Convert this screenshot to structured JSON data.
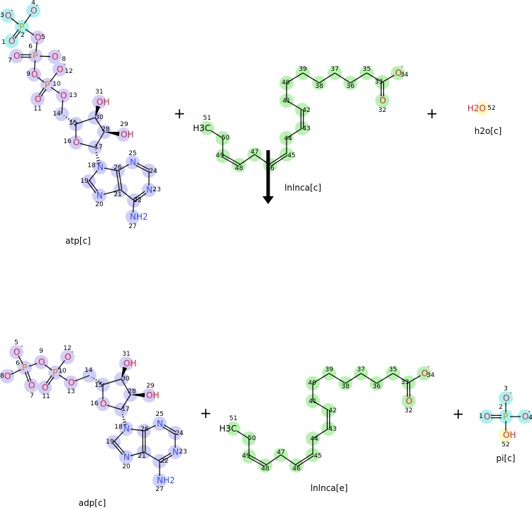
{
  "colors": {
    "lavender": "#cfcff8",
    "cyan": "#a8f2f2",
    "green": "#b8f2b0",
    "yellow": "#fbfbc0",
    "O": "#e0203a",
    "N": "#3050f8",
    "P": "#e07020",
    "Pgold": "#c09a10",
    "bond": "#000000"
  },
  "plus": "+",
  "reaction_arrow": {
    "direction": "down"
  },
  "molecules": {
    "atp": {
      "label": "atp[c]",
      "atoms": [
        {
          "n": "1",
          "el": "O",
          "hl": "cyan"
        },
        {
          "n": "2",
          "el": "P",
          "hl": "cyan",
          "gold": true
        },
        {
          "n": "3",
          "el": "O",
          "chg": "-",
          "hl": "cyan"
        },
        {
          "n": "4",
          "el": "O",
          "chg": "-",
          "hl": "cyan"
        },
        {
          "n": "5",
          "el": "O",
          "hl": "lavender"
        },
        {
          "n": "6",
          "el": "P",
          "hl": "lavender"
        },
        {
          "n": "7",
          "el": "O",
          "hl": "lavender"
        },
        {
          "n": "8",
          "el": "O",
          "chg": "-",
          "hl": "lavender"
        },
        {
          "n": "9",
          "el": "O",
          "hl": "lavender"
        },
        {
          "n": "10",
          "el": "P",
          "hl": "lavender"
        },
        {
          "n": "11",
          "el": "O",
          "hl": "lavender"
        },
        {
          "n": "12",
          "el": "O",
          "chg": "-",
          "hl": "lavender"
        },
        {
          "n": "13",
          "el": "O",
          "hl": "lavender"
        },
        {
          "n": "14",
          "el": "",
          "hl": "lavender"
        },
        {
          "n": "15",
          "el": "",
          "hl": "lavender"
        },
        {
          "n": "16",
          "el": "O",
          "hl": "lavender"
        },
        {
          "n": "17",
          "el": "",
          "hl": "lavender"
        },
        {
          "n": "18",
          "el": "N",
          "hl": "lavender"
        },
        {
          "n": "19",
          "el": "",
          "hl": "lavender"
        },
        {
          "n": "20",
          "el": "N",
          "hl": "lavender"
        },
        {
          "n": "21",
          "el": "",
          "hl": "lavender"
        },
        {
          "n": "22",
          "el": "",
          "hl": "lavender"
        },
        {
          "n": "23",
          "el": "N",
          "hl": "lavender"
        },
        {
          "n": "24",
          "el": "",
          "hl": "lavender"
        },
        {
          "n": "25",
          "el": "N",
          "hl": "lavender"
        },
        {
          "n": "26",
          "el": "",
          "hl": "lavender"
        },
        {
          "n": "27",
          "el": "NH2",
          "hl": "lavender"
        },
        {
          "n": "28",
          "el": "",
          "hl": "lavender"
        },
        {
          "n": "29",
          "el": "OH",
          "hl": "lavender"
        },
        {
          "n": "30",
          "el": "",
          "hl": "lavender"
        },
        {
          "n": "31",
          "el": "OH",
          "hl": "lavender"
        }
      ]
    },
    "lnlnca_c": {
      "label": "lnlnca[c]",
      "atoms": [
        {
          "n": "32",
          "el": "O",
          "hl": "green"
        },
        {
          "n": "33",
          "el": "",
          "hl": "green"
        },
        {
          "n": "34",
          "el": "O",
          "chg": "-",
          "hl": "green"
        },
        {
          "n": "35",
          "el": "",
          "hl": "green"
        },
        {
          "n": "36",
          "el": "",
          "hl": "green"
        },
        {
          "n": "37",
          "el": "",
          "hl": "green"
        },
        {
          "n": "38",
          "el": "",
          "hl": "green"
        },
        {
          "n": "39",
          "el": "",
          "hl": "green"
        },
        {
          "n": "40",
          "el": "",
          "hl": "green"
        },
        {
          "n": "41",
          "el": "",
          "hl": "green"
        },
        {
          "n": "42",
          "el": "",
          "hl": "green"
        },
        {
          "n": "43",
          "el": "",
          "hl": "green"
        },
        {
          "n": "44",
          "el": "",
          "hl": "green"
        },
        {
          "n": "45",
          "el": "",
          "hl": "green"
        },
        {
          "n": "46",
          "el": "",
          "hl": "green"
        },
        {
          "n": "47",
          "el": "",
          "hl": "green"
        },
        {
          "n": "48",
          "el": "",
          "hl": "green"
        },
        {
          "n": "49",
          "el": "",
          "hl": "green"
        },
        {
          "n": "50",
          "el": "",
          "hl": "green"
        },
        {
          "n": "51",
          "el": "H3C",
          "hl": "green"
        }
      ]
    },
    "h2o": {
      "label": "h2o[c]",
      "atoms": [
        {
          "n": "52",
          "el": "H2O",
          "hl": "yellow"
        }
      ]
    },
    "adp": {
      "label": "adp[c]",
      "atoms": [
        {
          "n": "5",
          "el": "O",
          "chg": "-",
          "hl": "lavender"
        },
        {
          "n": "6",
          "el": "P",
          "hl": "lavender"
        },
        {
          "n": "7",
          "el": "O",
          "hl": "lavender"
        },
        {
          "n": "8",
          "el": "O",
          "chg": "-",
          "hl": "lavender"
        },
        {
          "n": "9",
          "el": "O",
          "hl": "lavender"
        },
        {
          "n": "10",
          "el": "P",
          "hl": "lavender"
        },
        {
          "n": "11",
          "el": "O",
          "hl": "lavender"
        },
        {
          "n": "12",
          "el": "O",
          "chg": "-",
          "hl": "lavender"
        },
        {
          "n": "13",
          "el": "O",
          "hl": "lavender"
        },
        {
          "n": "14",
          "el": "",
          "hl": "lavender"
        },
        {
          "n": "15",
          "el": "",
          "hl": "lavender"
        },
        {
          "n": "16",
          "el": "O",
          "hl": "lavender"
        },
        {
          "n": "17",
          "el": "",
          "hl": "lavender"
        },
        {
          "n": "18",
          "el": "N",
          "hl": "lavender"
        },
        {
          "n": "19",
          "el": "",
          "hl": "lavender"
        },
        {
          "n": "20",
          "el": "N",
          "hl": "lavender"
        },
        {
          "n": "21",
          "el": "",
          "hl": "lavender"
        },
        {
          "n": "22",
          "el": "",
          "hl": "lavender"
        },
        {
          "n": "23",
          "el": "N",
          "hl": "lavender"
        },
        {
          "n": "24",
          "el": "",
          "hl": "lavender"
        },
        {
          "n": "25",
          "el": "N",
          "hl": "lavender"
        },
        {
          "n": "26",
          "el": "",
          "hl": "lavender"
        },
        {
          "n": "27",
          "el": "NH2",
          "hl": "lavender"
        },
        {
          "n": "28",
          "el": "",
          "hl": "lavender"
        },
        {
          "n": "29",
          "el": "OH",
          "hl": "lavender"
        },
        {
          "n": "30",
          "el": "",
          "hl": "lavender"
        },
        {
          "n": "31",
          "el": "OH",
          "hl": "lavender"
        }
      ]
    },
    "lnlnca_e": {
      "label": "lnlnca[e]",
      "atoms": [
        {
          "n": "32",
          "el": "O",
          "hl": "green"
        },
        {
          "n": "33",
          "el": "",
          "hl": "green"
        },
        {
          "n": "34",
          "el": "O",
          "chg": "-",
          "hl": "green"
        },
        {
          "n": "35",
          "el": "",
          "hl": "green"
        },
        {
          "n": "36",
          "el": "",
          "hl": "green"
        },
        {
          "n": "37",
          "el": "",
          "hl": "green"
        },
        {
          "n": "38",
          "el": "",
          "hl": "green"
        },
        {
          "n": "39",
          "el": "",
          "hl": "green"
        },
        {
          "n": "40",
          "el": "",
          "hl": "green"
        },
        {
          "n": "41",
          "el": "",
          "hl": "green"
        },
        {
          "n": "42",
          "el": "",
          "hl": "green"
        },
        {
          "n": "43",
          "el": "",
          "hl": "green"
        },
        {
          "n": "44",
          "el": "",
          "hl": "green"
        },
        {
          "n": "45",
          "el": "",
          "hl": "green"
        },
        {
          "n": "46",
          "el": "",
          "hl": "green"
        },
        {
          "n": "47",
          "el": "",
          "hl": "green"
        },
        {
          "n": "48",
          "el": "",
          "hl": "green"
        },
        {
          "n": "49",
          "el": "",
          "hl": "green"
        },
        {
          "n": "50",
          "el": "",
          "hl": "green"
        },
        {
          "n": "51",
          "el": "H3C",
          "hl": "green"
        }
      ]
    },
    "pi": {
      "label": "pi[c]",
      "atoms": [
        {
          "n": "1",
          "el": "O",
          "hl": "cyan"
        },
        {
          "n": "2",
          "el": "P",
          "hl": "cyan",
          "gold": true
        },
        {
          "n": "3",
          "el": "O",
          "chg": "-",
          "hl": "cyan"
        },
        {
          "n": "4",
          "el": "O",
          "chg": "-",
          "hl": "cyan"
        },
        {
          "n": "52",
          "el": "OH",
          "hl": "yellow"
        }
      ]
    }
  }
}
